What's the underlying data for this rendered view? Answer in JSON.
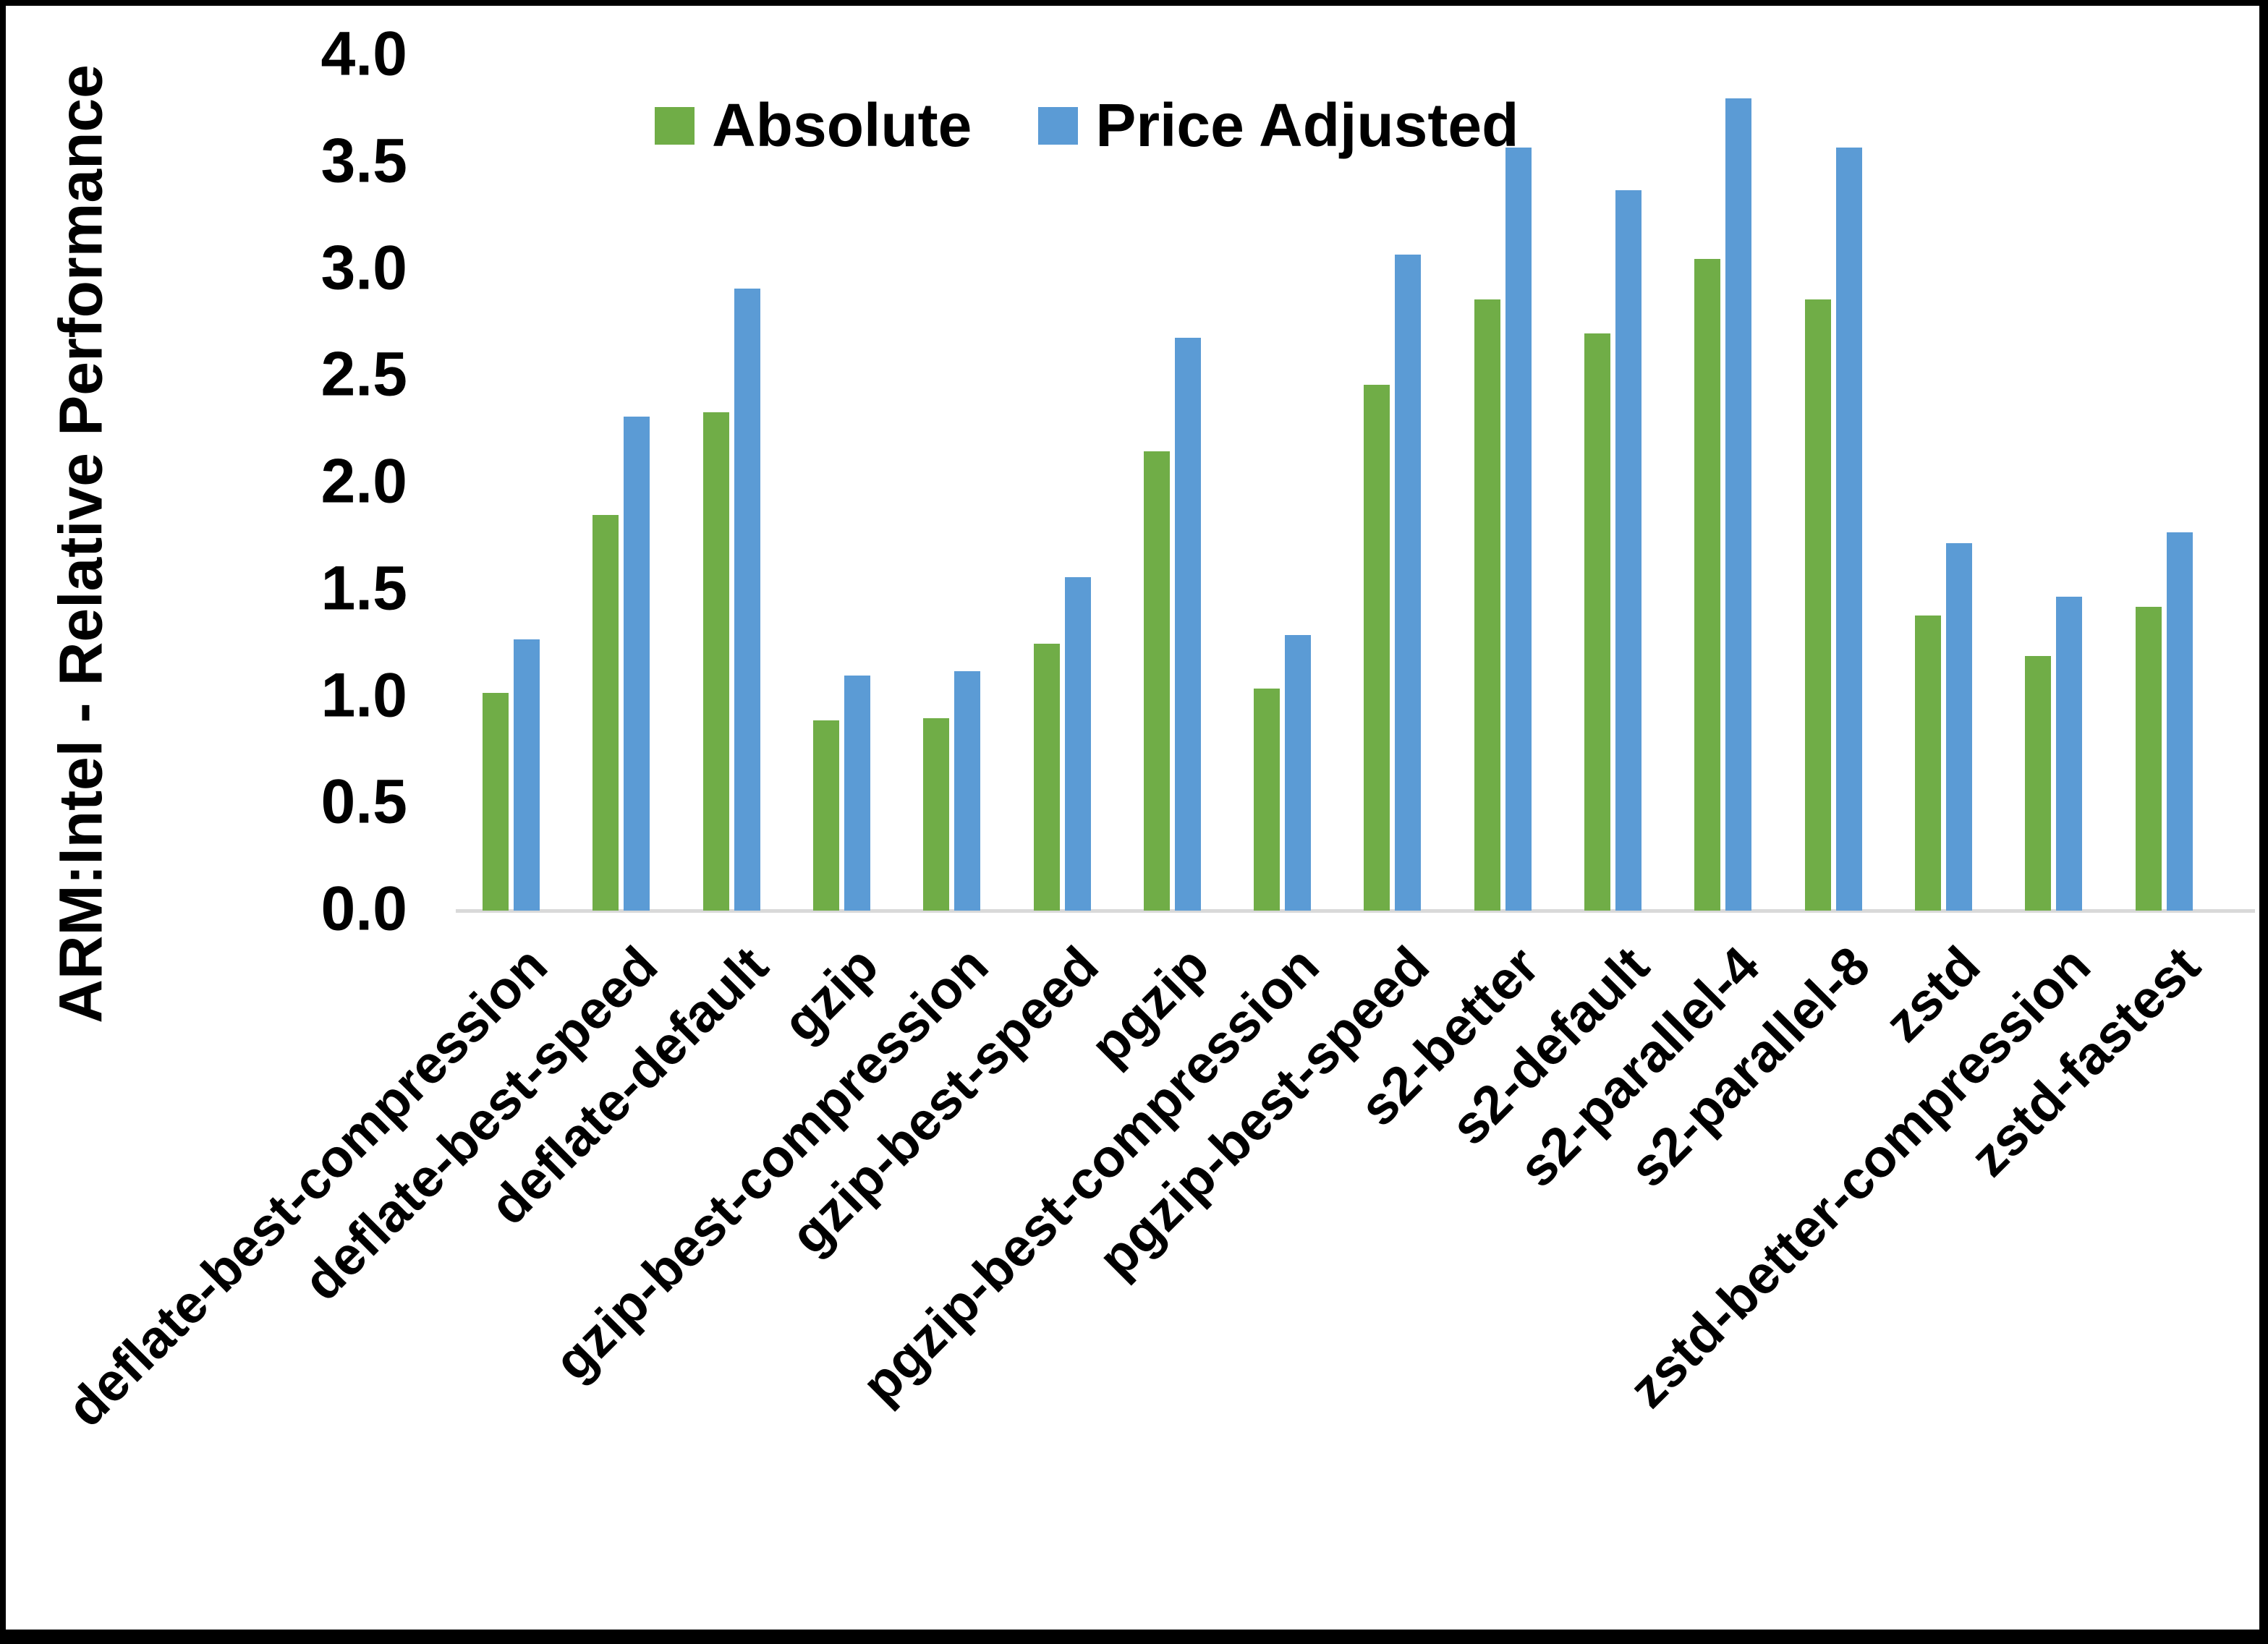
{
  "chart_data": {
    "type": "bar",
    "title": "",
    "ylabel": "ARM:Intel - Relative Performance",
    "xlabel": "",
    "ylim": [
      0,
      4
    ],
    "ytick_step": 0.5,
    "ytick_labels": [
      "0.0",
      "0.5",
      "1.0",
      "1.5",
      "2.0",
      "2.5",
      "3.0",
      "3.5",
      "4.0"
    ],
    "grid": false,
    "legend_position": "top-center",
    "axis_line_color": "#d9d9d9",
    "categories": [
      "deflate-best-compression",
      "deflate-best-speed",
      "deflate-default",
      "gzip",
      "gzip-best-compression",
      "gzip-best-speed",
      "pgzip",
      "pgzip-best-compression",
      "pgzip-best-speed",
      "s2-better",
      "s2-default",
      "s2-parallel-4",
      "s2-parallel-8",
      "zstd",
      "zstd-better-compression",
      "zstd-fastest"
    ],
    "series": [
      {
        "name": "Absolute",
        "color": "#70AD47",
        "values": [
          1.02,
          1.85,
          2.33,
          0.89,
          0.9,
          1.25,
          2.15,
          1.04,
          2.46,
          2.86,
          2.7,
          3.05,
          2.86,
          1.38,
          1.19,
          1.42
        ]
      },
      {
        "name": "Price Adjusted",
        "color": "#5B9BD5",
        "values": [
          1.27,
          2.31,
          2.91,
          1.1,
          1.12,
          1.56,
          2.68,
          1.29,
          3.07,
          3.57,
          3.37,
          3.8,
          3.57,
          1.72,
          1.47,
          1.77
        ]
      }
    ]
  },
  "legend": [
    {
      "label": "Absolute",
      "color": "#70AD47"
    },
    {
      "label": "Price Adjusted",
      "color": "#5B9BD5"
    }
  ]
}
